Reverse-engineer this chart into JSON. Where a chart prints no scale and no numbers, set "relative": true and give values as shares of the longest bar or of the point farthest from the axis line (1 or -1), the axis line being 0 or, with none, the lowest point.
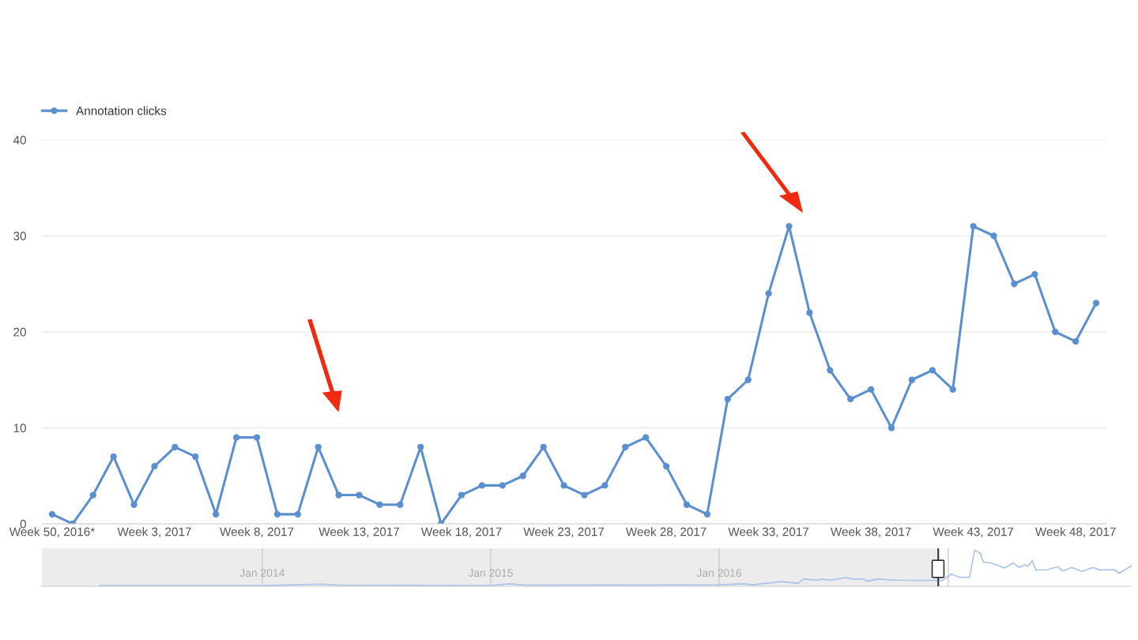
{
  "chart_data": [
    {
      "type": "line",
      "legend": "top left",
      "grid": "y",
      "marker": "circle",
      "line_style": "solid",
      "categories": [
        "Week 50, 2016*",
        null,
        null,
        null,
        null,
        "Week 3, 2017",
        null,
        null,
        null,
        null,
        "Week 8, 2017",
        null,
        null,
        null,
        null,
        "Week 13, 2017",
        null,
        null,
        null,
        null,
        "Week 18, 2017",
        null,
        null,
        null,
        null,
        "Week 23, 2017",
        null,
        null,
        null,
        null,
        "Week 28, 2017",
        null,
        null,
        null,
        null,
        "Week 33, 2017",
        null,
        null,
        null,
        null,
        "Week 38, 2017",
        null,
        null,
        null,
        null,
        "Week 43, 2017",
        null,
        null,
        null,
        null,
        "Week 48, 2017",
        null
      ],
      "ylim": [
        0,
        40
      ],
      "yticks": [
        0,
        10,
        20,
        30,
        40
      ],
      "series": [
        {
          "name": "Annotation clicks",
          "color": "#5b8fd0",
          "values": [
            1,
            0,
            3,
            7,
            2,
            6,
            8,
            7,
            1,
            9,
            9,
            1,
            1,
            8,
            3,
            3,
            2,
            2,
            8,
            0,
            3,
            4,
            4,
            5,
            8,
            4,
            3,
            4,
            8,
            9,
            6,
            2,
            1,
            13,
            15,
            24,
            31,
            22,
            16,
            13,
            14,
            10,
            15,
            16,
            14,
            31,
            30,
            25,
            26,
            20,
            19,
            23
          ]
        }
      ]
    },
    {
      "type": "line",
      "relative": true,
      "grid": "x",
      "xlim": [
        "2013-01-14",
        "2017-10-21"
      ],
      "xticks": [
        {
          "value": "2014-01-01",
          "label": "Jan 2014"
        },
        {
          "value": "2015-01-01",
          "label": "Jan 2015"
        },
        {
          "value": "2016-01-01",
          "label": "Jan 2016"
        },
        {
          "value": "2017-01-01",
          "label": null
        }
      ],
      "bands": [
        {
          "axis": "x",
          "from": "2013-01-14",
          "to": "2016-12-16",
          "color": "#ececec"
        }
      ],
      "ref_lines": [
        {
          "axis": "x",
          "value": "2016-12-16",
          "color": "#333333",
          "line_style": "solid"
        }
      ],
      "series": [
        {
          "color": "#a8c4ea",
          "x": [
            "2013-04-16",
            "2014-01-01",
            "2014-04-06",
            "2014-05-05",
            "2015-01-01",
            "2015-01-31",
            "2015-02-26",
            "2016-01-01",
            "2016-02-09",
            "2016-02-24",
            "2016-04-09",
            "2016-05-06",
            "2016-05-15",
            "2016-06-07",
            "2016-06-12",
            "2016-06-28",
            "2016-07-21",
            "2016-08-01",
            "2016-08-19",
            "2016-08-24",
            "2016-09-10",
            "2016-10-09",
            "2016-12-23",
            "2017-01-06",
            "2017-01-18",
            "2017-02-04",
            "2017-02-12",
            "2017-02-21",
            "2017-02-26",
            "2017-03-09",
            "2017-04-01",
            "2017-04-15",
            "2017-04-24",
            "2017-05-03",
            "2017-05-08",
            "2017-05-15",
            "2017-05-21",
            "2017-06-08",
            "2017-06-25",
            "2017-07-03",
            "2017-07-17",
            "2017-08-03",
            "2017-08-20",
            "2017-09-01",
            "2017-09-23",
            "2017-10-01",
            "2017-10-10",
            "2017-10-21"
          ],
          "values": [
            0.02,
            0.02,
            0.06,
            0.03,
            0.02,
            0.07,
            0.03,
            0.04,
            0.07,
            0.04,
            0.13,
            0.08,
            0.2,
            0.17,
            0.2,
            0.17,
            0.24,
            0.2,
            0.2,
            0.14,
            0.2,
            0.17,
            0.16,
            0.34,
            0.25,
            0.25,
            1.0,
            0.92,
            0.67,
            0.65,
            0.51,
            0.65,
            0.52,
            0.59,
            0.55,
            0.7,
            0.45,
            0.46,
            0.54,
            0.42,
            0.52,
            0.41,
            0.52,
            0.45,
            0.46,
            0.36,
            0.46,
            0.57
          ]
        }
      ]
    }
  ]
}
